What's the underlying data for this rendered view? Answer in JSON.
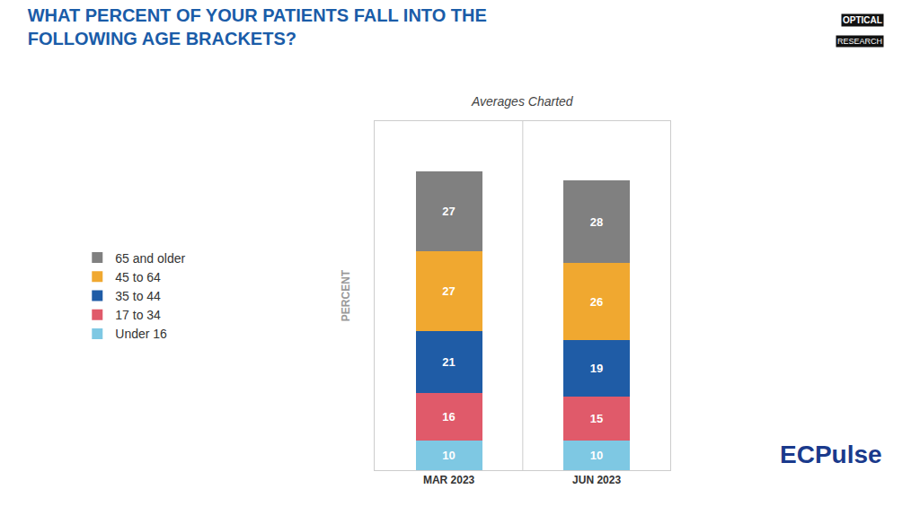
{
  "chart_data": {
    "type": "bar",
    "title": "WHAT PERCENT OF YOUR PATIENTS FALL INTO THE\nFOLLOWING AGE BRACKETS?",
    "subtitle": "Averages Charted",
    "ylabel": "PERCENT",
    "categories": [
      "MAR 2023",
      "JUN 2023"
    ],
    "series": [
      {
        "name": "Under 16",
        "color": "#7EC8E3",
        "values": [
          10,
          10
        ]
      },
      {
        "name": "17 to 34",
        "color": "#E05A6A",
        "values": [
          16,
          15
        ]
      },
      {
        "name": "35 to 44",
        "color": "#1F5CA6",
        "values": [
          21,
          19
        ]
      },
      {
        "name": "45 to 64",
        "color": "#F0A830",
        "values": [
          27,
          26
        ]
      },
      {
        "name": "65 and older",
        "color": "#808080",
        "values": [
          27,
          28
        ]
      }
    ],
    "stacked": true,
    "data_labels": true,
    "ylim": [
      0,
      118
    ],
    "yticks": [],
    "tick_labels": "x",
    "grid": false,
    "legend": "left",
    "annotations": [
      "OPTICAL",
      "RESEARCH",
      "ECPulse"
    ]
  }
}
